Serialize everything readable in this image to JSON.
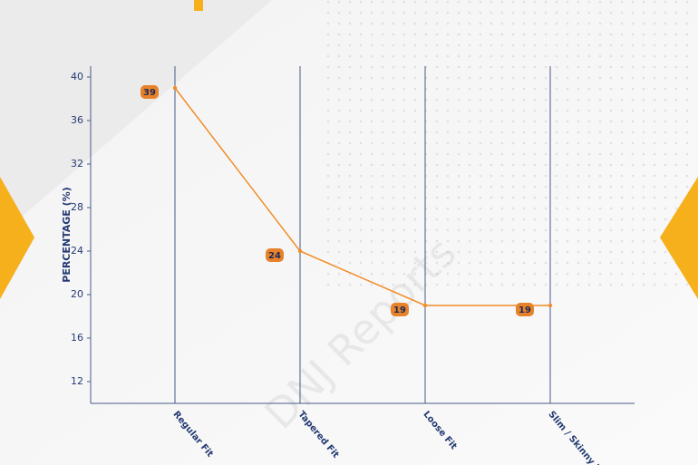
{
  "chart_data": {
    "type": "line",
    "categories": [
      "Regular Fit",
      "Tapered Fit",
      "Loose Fit",
      "Slim / Skinny Fit"
    ],
    "values": [
      39,
      24,
      19,
      19
    ],
    "color": "#f28c28",
    "y_label": "PERCENTAGE (%)",
    "ylim": [
      10,
      41
    ],
    "yticks": [
      12,
      16,
      20,
      24,
      28,
      32,
      36,
      40
    ],
    "grid": true,
    "watermark": "DNJ Reports"
  }
}
